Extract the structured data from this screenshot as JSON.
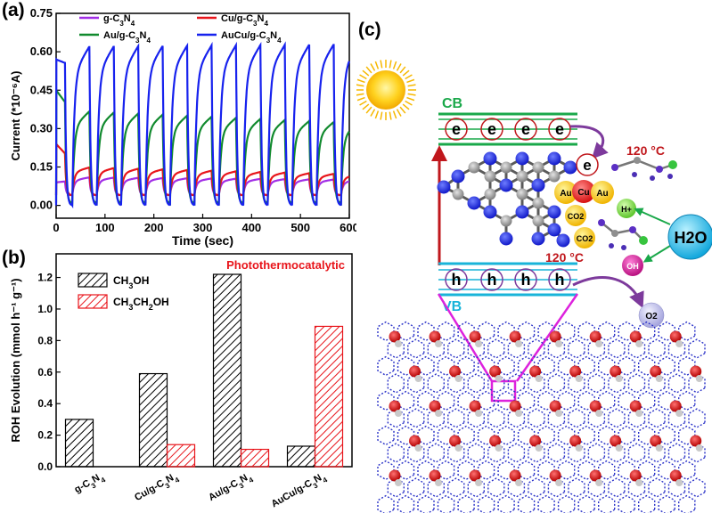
{
  "panels": {
    "a": "(a)",
    "b": "(b)",
    "c": "(c)"
  },
  "chart_data": [
    {
      "type": "line",
      "xlabel": "Time (sec)",
      "ylabel": "Current (*10⁻⁶A)",
      "xlim": [
        0,
        600
      ],
      "ylim": [
        -0.05,
        0.75
      ],
      "xticks": [
        0,
        100,
        200,
        300,
        400,
        500,
        600
      ],
      "yticks": [
        0.0,
        0.15,
        0.3,
        0.45,
        0.6,
        0.75
      ],
      "grid": false,
      "legend_position": "top",
      "cycle_period_sec": 50,
      "light_on_sec": 35,
      "series": [
        {
          "name": "g-C3N4",
          "color": "#a12ee6",
          "dark": 0.04,
          "initial_peak": 0.09,
          "peak": 0.11,
          "end_peak": 0.1
        },
        {
          "name": "Cu/g-C3N4",
          "color": "#e8151b",
          "dark": 0.04,
          "initial_peak": 0.24,
          "peak": 0.15,
          "end_peak": 0.12
        },
        {
          "name": "Au/g-C3N4",
          "color": "#118a2e",
          "dark": 0.01,
          "initial_peak": 0.45,
          "peak": 0.37,
          "end_peak": 0.32
        },
        {
          "name": "AuCu/g-C3N4",
          "color": "#1722ee",
          "dark": 0.0,
          "initial_peak": 0.57,
          "peak": 0.62,
          "end_peak": 0.63
        }
      ]
    },
    {
      "type": "bar",
      "title": "Photothermocatalytic",
      "ylabel": "ROH Evolution (mmol h⁻¹ g⁻¹)",
      "categories": [
        "g-C3N4",
        "Cu/g-C3N4",
        "Au/g-C3N4",
        "AuCu/g-C3N4"
      ],
      "ylim": [
        0,
        1.35
      ],
      "yticks": [
        0.0,
        0.2,
        0.4,
        0.6,
        0.8,
        1.0,
        1.2
      ],
      "legend_position": "top-left",
      "series": [
        {
          "name": "CH3OH",
          "color": "#000000",
          "values": [
            0.3,
            0.59,
            1.22,
            0.13
          ]
        },
        {
          "name": "CH3CH2OH",
          "color": "#e8151b",
          "values": [
            0.0,
            0.14,
            0.11,
            0.89
          ]
        }
      ]
    }
  ],
  "diagram": {
    "cb_label": "CB",
    "vb_label": "VB",
    "electron": "e",
    "hole": "h",
    "temp_top": "120 °C",
    "temp_bottom": "120 °C",
    "h2o": "H2O",
    "oh": "OH",
    "hplus": "H+",
    "o2": "O2",
    "co2": "CO2",
    "au": "Au",
    "cu": "Cu"
  }
}
